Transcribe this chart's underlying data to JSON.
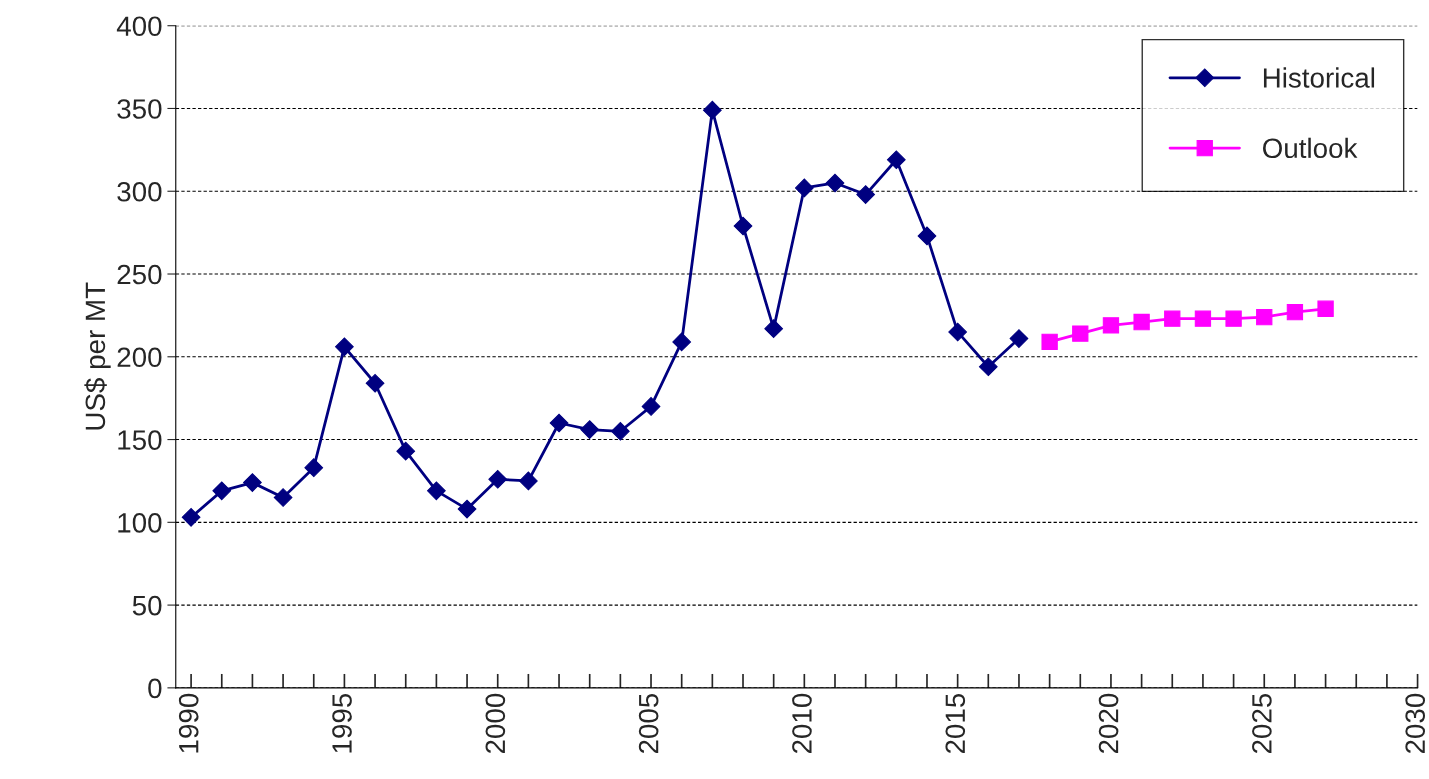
{
  "chart_data": {
    "type": "line",
    "ylabel": "US$ per MT",
    "xlim": [
      1989.5,
      2030
    ],
    "ylim": [
      0,
      400
    ],
    "yticks": [
      0,
      50,
      100,
      150,
      200,
      250,
      300,
      350,
      400
    ],
    "xticks": [
      1990,
      {
        "value": 1991,
        "label": null
      },
      {
        "value": 1992,
        "label": null
      },
      {
        "value": 1993,
        "label": null
      },
      {
        "value": 1994,
        "label": null
      },
      1995,
      {
        "value": 1996,
        "label": null
      },
      {
        "value": 1997,
        "label": null
      },
      {
        "value": 1998,
        "label": null
      },
      {
        "value": 1999,
        "label": null
      },
      2000,
      {
        "value": 2001,
        "label": null
      },
      {
        "value": 2002,
        "label": null
      },
      {
        "value": 2003,
        "label": null
      },
      {
        "value": 2004,
        "label": null
      },
      2005,
      {
        "value": 2006,
        "label": null
      },
      {
        "value": 2007,
        "label": null
      },
      {
        "value": 2008,
        "label": null
      },
      {
        "value": 2009,
        "label": null
      },
      2010,
      {
        "value": 2011,
        "label": null
      },
      {
        "value": 2012,
        "label": null
      },
      {
        "value": 2013,
        "label": null
      },
      {
        "value": 2014,
        "label": null
      },
      2015,
      {
        "value": 2016,
        "label": null
      },
      {
        "value": 2017,
        "label": null
      },
      {
        "value": 2018,
        "label": null
      },
      {
        "value": 2019,
        "label": null
      },
      2020,
      {
        "value": 2021,
        "label": null
      },
      {
        "value": 2022,
        "label": null
      },
      {
        "value": 2023,
        "label": null
      },
      {
        "value": 2024,
        "label": null
      },
      2025,
      {
        "value": 2026,
        "label": null
      },
      {
        "value": 2027,
        "label": null
      },
      {
        "value": 2028,
        "label": null
      },
      {
        "value": 2029,
        "label": null
      },
      2030
    ],
    "grid": "y",
    "legend": "top right",
    "series": [
      {
        "name": "Historical",
        "color": "#000080",
        "marker": "diamond",
        "x": [
          1990,
          1991,
          1992,
          1993,
          1994,
          1995,
          1996,
          1997,
          1998,
          1999,
          2000,
          2001,
          2002,
          2003,
          2004,
          2005,
          2006,
          2007,
          2008,
          2009,
          2010,
          2011,
          2012,
          2013,
          2014,
          2015,
          2016,
          2017
        ],
        "values": [
          103,
          119,
          124,
          115,
          133,
          206,
          184,
          143,
          119,
          108,
          126,
          125,
          160,
          156,
          155,
          170,
          209,
          349,
          279,
          217,
          302,
          305,
          298,
          319,
          273,
          215,
          194,
          211
        ]
      },
      {
        "name": "Outlook",
        "color": "#ff00ff",
        "marker": "square",
        "x": [
          2018,
          2019,
          2020,
          2021,
          2022,
          2023,
          2024,
          2025,
          2026,
          2027
        ],
        "values": [
          209,
          214,
          219,
          221,
          223,
          223,
          223,
          224,
          227,
          229
        ]
      }
    ]
  }
}
